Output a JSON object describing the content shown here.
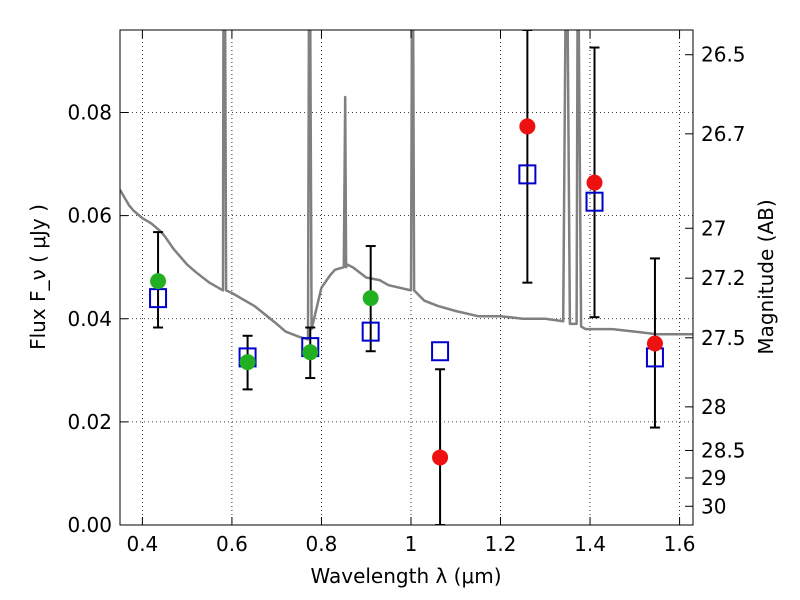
{
  "chart_data": {
    "type": "scatter",
    "xlabel": "Wavelength  λ (μm)",
    "ylabel": "Flux  F_ν  ( μJy )",
    "y2label": "Magnitude (AB)",
    "xlim": [
      0.35,
      1.63
    ],
    "ylim": [
      0.0,
      0.096
    ],
    "grid": true,
    "x_ticks": [
      0.4,
      0.6,
      0.8,
      1.0,
      1.2,
      1.4,
      1.6
    ],
    "x_tick_labels": [
      "0.4",
      "0.6",
      "0.8",
      "1",
      "1.2",
      "1.4",
      "1.6"
    ],
    "y_ticks": [
      0.0,
      0.02,
      0.04,
      0.06,
      0.08
    ],
    "y_tick_labels": [
      "0.00",
      "0.02",
      "0.04",
      "0.06",
      "0.08"
    ],
    "mag_ticks": [
      26.5,
      26.7,
      27,
      27.2,
      27.5,
      28,
      28.5,
      29,
      30
    ],
    "mag_tick_labels": [
      "26.5",
      "26.7",
      "27",
      "27.2",
      "27.5",
      "28",
      "28.5",
      "29",
      "30"
    ],
    "colors": {
      "model": "#808080",
      "green": "#22b022",
      "red": "#ee1111",
      "box": "#0000cc",
      "errorbar": "#000000"
    },
    "series": [
      {
        "kind": "model-spectrum",
        "x": [
          0.35,
          0.37,
          0.38,
          0.4,
          0.42,
          0.44,
          0.45,
          0.47,
          0.5,
          0.52,
          0.55,
          0.58,
          0.581,
          0.585,
          0.587,
          0.6,
          0.65,
          0.7,
          0.72,
          0.75,
          0.77,
          0.772,
          0.775,
          0.778,
          0.8,
          0.82,
          0.83,
          0.85,
          0.853,
          0.855,
          0.858,
          0.87,
          0.9,
          0.93,
          0.95,
          1.0,
          1.002,
          1.005,
          1.007,
          1.03,
          1.06,
          1.1,
          1.15,
          1.2,
          1.25,
          1.3,
          1.34,
          1.345,
          1.35,
          1.355,
          1.36,
          1.37,
          1.372,
          1.375,
          1.38,
          1.39,
          1.4,
          1.42,
          1.45,
          1.5,
          1.55,
          1.6,
          1.63
        ],
        "y": [
          0.065,
          0.062,
          0.061,
          0.0595,
          0.0585,
          0.057,
          0.056,
          0.0535,
          0.0505,
          0.049,
          0.047,
          0.0455,
          0.096,
          0.096,
          0.0455,
          0.045,
          0.0425,
          0.039,
          0.0375,
          0.0365,
          0.036,
          0.096,
          0.096,
          0.038,
          0.046,
          0.0485,
          0.0495,
          0.05,
          0.083,
          0.05,
          0.0505,
          0.05,
          0.048,
          0.0475,
          0.0465,
          0.0455,
          0.096,
          0.096,
          0.0455,
          0.0435,
          0.0425,
          0.0415,
          0.0405,
          0.0405,
          0.04,
          0.04,
          0.0395,
          0.096,
          0.096,
          0.039,
          0.039,
          0.039,
          0.096,
          0.096,
          0.0385,
          0.038,
          0.038,
          0.038,
          0.038,
          0.0375,
          0.037,
          0.037,
          0.037
        ]
      },
      {
        "kind": "measured-green",
        "points": [
          {
            "x": 0.435,
            "y": 0.0473,
            "ylow": 0.0383,
            "yhigh": 0.0568
          },
          {
            "x": 0.635,
            "y": 0.0316,
            "ylow": 0.0263,
            "yhigh": 0.0367
          },
          {
            "x": 0.775,
            "y": 0.0335,
            "ylow": 0.0285,
            "yhigh": 0.0383
          },
          {
            "x": 0.91,
            "y": 0.044,
            "ylow": 0.0337,
            "yhigh": 0.0541
          }
        ]
      },
      {
        "kind": "measured-red",
        "points": [
          {
            "x": 1.065,
            "y": 0.0131,
            "ylow": 0.0,
            "yhigh": 0.0302
          },
          {
            "x": 1.26,
            "y": 0.0773,
            "ylow": 0.047,
            "yhigh": 0.096
          },
          {
            "x": 1.41,
            "y": 0.0664,
            "ylow": 0.0403,
            "yhigh": 0.0926
          },
          {
            "x": 1.545,
            "y": 0.0352,
            "ylow": 0.0189,
            "yhigh": 0.0517
          }
        ]
      },
      {
        "kind": "model-boxes",
        "points": [
          {
            "x": 0.435,
            "y": 0.044
          },
          {
            "x": 0.635,
            "y": 0.0325
          },
          {
            "x": 0.775,
            "y": 0.0345
          },
          {
            "x": 0.91,
            "y": 0.0375
          },
          {
            "x": 1.065,
            "y": 0.0337
          },
          {
            "x": 1.26,
            "y": 0.068
          },
          {
            "x": 1.41,
            "y": 0.0627
          },
          {
            "x": 1.545,
            "y": 0.0325
          }
        ]
      }
    ]
  }
}
